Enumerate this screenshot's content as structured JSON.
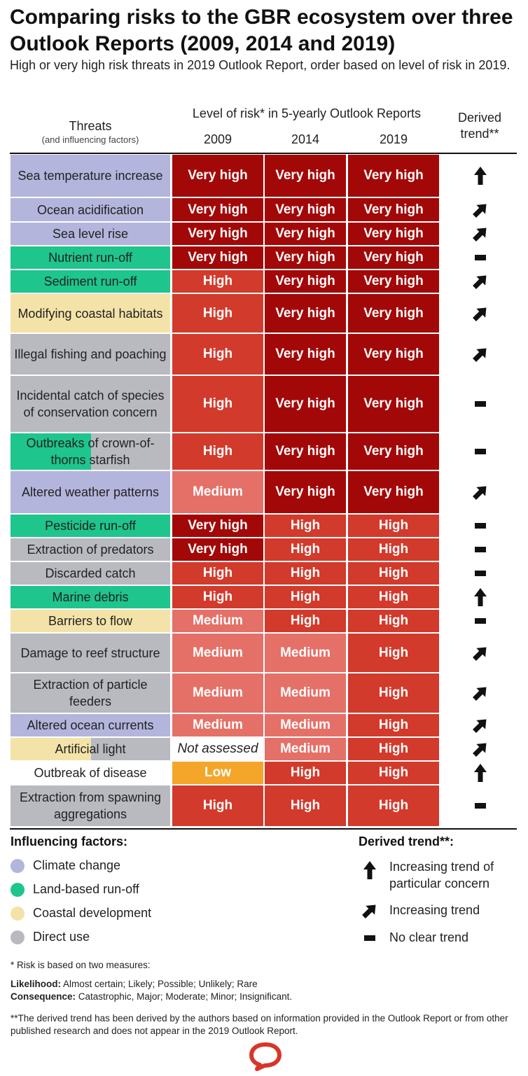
{
  "title": "Comparing risks to the GBR ecosystem over three Outlook Reports (2009, 2014 and 2019)",
  "subtitle": "High or very high risk threats in 2019 Outlook Report, order based on level of risk in 2019.",
  "headers": {
    "threats": "Threats",
    "threats_sub": "(and influencing factors)",
    "level": "Level of risk* in 5-yearly Outlook Reports",
    "years": [
      "2009",
      "2014",
      "2019"
    ],
    "derived": "Derived trend**"
  },
  "colors": {
    "climate": "#b3b5dc",
    "runoff": "#1ec58d",
    "coastal": "#f4e3a8",
    "direct": "#b8bac0",
    "none": "#ffffff",
    "very_high": "#a30808",
    "high": "#d23a2c",
    "medium": "#e57067",
    "low": "#f4a62a",
    "not_assessed": "#ffffff"
  },
  "chart_data": {
    "type": "table",
    "columns": [
      "Threat",
      "2009",
      "2014",
      "2019",
      "Derived trend"
    ],
    "rows": [
      {
        "threat": "Sea temperature increase",
        "factors": [
          "climate"
        ],
        "levels": [
          "Very high",
          "Very high",
          "Very high"
        ],
        "trend": "up"
      },
      {
        "threat": "Ocean acidification",
        "factors": [
          "climate"
        ],
        "levels": [
          "Very high",
          "Very high",
          "Very high"
        ],
        "trend": "increasing"
      },
      {
        "threat": "Sea level rise",
        "factors": [
          "climate"
        ],
        "levels": [
          "Very high",
          "Very high",
          "Very high"
        ],
        "trend": "increasing"
      },
      {
        "threat": "Nutrient run-off",
        "factors": [
          "runoff"
        ],
        "levels": [
          "Very high",
          "Very high",
          "Very high"
        ],
        "trend": "none"
      },
      {
        "threat": "Sediment run-off",
        "factors": [
          "runoff"
        ],
        "levels": [
          "High",
          "Very high",
          "Very high"
        ],
        "trend": "increasing"
      },
      {
        "threat": "Modifying coastal habitats",
        "factors": [
          "coastal"
        ],
        "levels": [
          "High",
          "Very high",
          "Very high"
        ],
        "trend": "increasing"
      },
      {
        "threat": "Illegal fishing and poaching",
        "factors": [
          "direct"
        ],
        "levels": [
          "High",
          "Very high",
          "Very high"
        ],
        "trend": "increasing"
      },
      {
        "threat": "Incidental catch of species of conservation concern",
        "factors": [
          "direct"
        ],
        "levels": [
          "High",
          "Very high",
          "Very high"
        ],
        "trend": "none"
      },
      {
        "threat": "Outbreaks of crown-of-thorns starfish",
        "factors": [
          "runoff",
          "direct"
        ],
        "levels": [
          "High",
          "Very high",
          "Very high"
        ],
        "trend": "none"
      },
      {
        "threat": "Altered weather patterns",
        "factors": [
          "climate"
        ],
        "levels": [
          "Medium",
          "Very high",
          "Very high"
        ],
        "trend": "increasing"
      },
      {
        "threat": "Pesticide run-off",
        "factors": [
          "runoff"
        ],
        "levels": [
          "Very high",
          "High",
          "High"
        ],
        "trend": "none"
      },
      {
        "threat": "Extraction of predators",
        "factors": [
          "direct"
        ],
        "levels": [
          "Very high",
          "High",
          "High"
        ],
        "trend": "none"
      },
      {
        "threat": "Discarded catch",
        "factors": [
          "direct"
        ],
        "levels": [
          "High",
          "High",
          "High"
        ],
        "trend": "none"
      },
      {
        "threat": "Marine debris",
        "factors": [
          "runoff"
        ],
        "levels": [
          "High",
          "High",
          "High"
        ],
        "trend": "up"
      },
      {
        "threat": "Barriers to flow",
        "factors": [
          "coastal"
        ],
        "levels": [
          "Medium",
          "High",
          "High"
        ],
        "trend": "none"
      },
      {
        "threat": "Damage to reef structure",
        "factors": [
          "direct"
        ],
        "levels": [
          "Medium",
          "Medium",
          "High"
        ],
        "trend": "increasing"
      },
      {
        "threat": "Extraction of particle feeders",
        "factors": [
          "direct"
        ],
        "levels": [
          "Medium",
          "Medium",
          "High"
        ],
        "trend": "increasing"
      },
      {
        "threat": "Altered ocean currents",
        "factors": [
          "climate"
        ],
        "levels": [
          "Medium",
          "Medium",
          "High"
        ],
        "trend": "increasing"
      },
      {
        "threat": "Artificial light",
        "factors": [
          "coastal",
          "direct"
        ],
        "levels": [
          "Not assessed",
          "Medium",
          "High"
        ],
        "trend": "increasing"
      },
      {
        "threat": "Outbreak of disease",
        "factors": [
          "none"
        ],
        "levels": [
          "Low",
          "High",
          "High"
        ],
        "trend": "up"
      },
      {
        "threat": "Extraction from spawning aggregations",
        "factors": [
          "direct"
        ],
        "levels": [
          "High",
          "High",
          "High"
        ],
        "trend": "none"
      }
    ]
  },
  "legend_factors": {
    "title": "Influencing factors:",
    "items": [
      {
        "label": "Climate change",
        "key": "climate"
      },
      {
        "label": "Land-based run-off",
        "key": "runoff"
      },
      {
        "label": "Coastal development",
        "key": "coastal"
      },
      {
        "label": "Direct use",
        "key": "direct"
      }
    ]
  },
  "legend_trend": {
    "title": "Derived trend**:",
    "items": [
      {
        "label": "Increasing trend of particular concern",
        "icon": "up-arrow-icon"
      },
      {
        "label": "Increasing trend",
        "icon": "diagonal-arrow-icon"
      },
      {
        "label": "No clear trend",
        "icon": "dash-icon"
      }
    ]
  },
  "footnotes": {
    "risk": "* Risk is based on two measures:",
    "likelihood_label": "Likelihood:",
    "likelihood": " Almost certain; Likely; Possible; Unlikely; Rare",
    "consequence_label": "Consequence:",
    "consequence": " Catastrophic, Major; Moderate; Minor; Insignificant.",
    "derived": "**The derived trend has been derived by the authors based on information provided in the Outlook Report or from other published research and does not appear in the 2019 Outlook Report."
  }
}
